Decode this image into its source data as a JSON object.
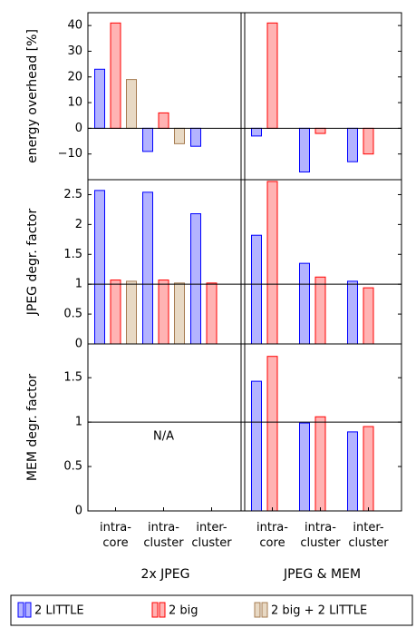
{
  "chart_data": {
    "type": "bar",
    "groups": [
      "2x JPEG",
      "JPEG & MEM"
    ],
    "categories": [
      "intra-\ncore",
      "intra-\ncluster",
      "inter-\ncluster"
    ],
    "series": [
      {
        "name": "2 LITTLE",
        "color": "#b3b3ff",
        "edgecolor": "#0000ff"
      },
      {
        "name": "2 big",
        "color": "#ffb3b3",
        "edgecolor": "#ff0000"
      },
      {
        "name": "2 big + 2 LITTLE",
        "color": "#e8d9c4",
        "edgecolor": "#a67c52"
      }
    ],
    "panels": [
      {
        "ylabel": "energy overhead [%]",
        "ylim": [
          -20,
          45
        ],
        "yticks": [
          {
            "value": -10,
            "label": "−10"
          },
          0,
          10,
          20,
          30,
          40
        ],
        "refline": 0,
        "values": [
          [
            [
              23,
              -9,
              -7
            ],
            [
              41,
              6,
              null
            ],
            [
              19,
              -6,
              null
            ]
          ],
          [
            [
              -3,
              -17,
              -13
            ],
            [
              41,
              -2,
              -10
            ],
            [
              null,
              null,
              null
            ]
          ]
        ]
      },
      {
        "ylabel": "JPEG degr. factor",
        "ylim": [
          0,
          2.75
        ],
        "yticks": [
          0,
          0.5,
          1,
          1.5,
          2,
          2.5
        ],
        "refline": 1,
        "values": [
          [
            [
              2.57,
              2.54,
              2.18
            ],
            [
              1.07,
              1.07,
              1.02
            ],
            [
              1.05,
              1.02,
              null
            ]
          ],
          [
            [
              1.82,
              1.35,
              1.05
            ],
            [
              2.72,
              1.12,
              0.94
            ],
            [
              null,
              null,
              null
            ]
          ]
        ]
      },
      {
        "ylabel": "MEM degr. factor",
        "ylim": [
          0,
          1.88
        ],
        "yticks": [
          0,
          0.5,
          1,
          1.5
        ],
        "refline": 1,
        "annotation": "N/A",
        "values": [
          [
            [
              null,
              null,
              null
            ],
            [
              null,
              null,
              null
            ],
            [
              null,
              null,
              null
            ]
          ],
          [
            [
              1.46,
              0.99,
              0.89
            ],
            [
              1.74,
              1.06,
              0.95
            ],
            [
              null,
              null,
              null
            ]
          ]
        ]
      }
    ]
  }
}
